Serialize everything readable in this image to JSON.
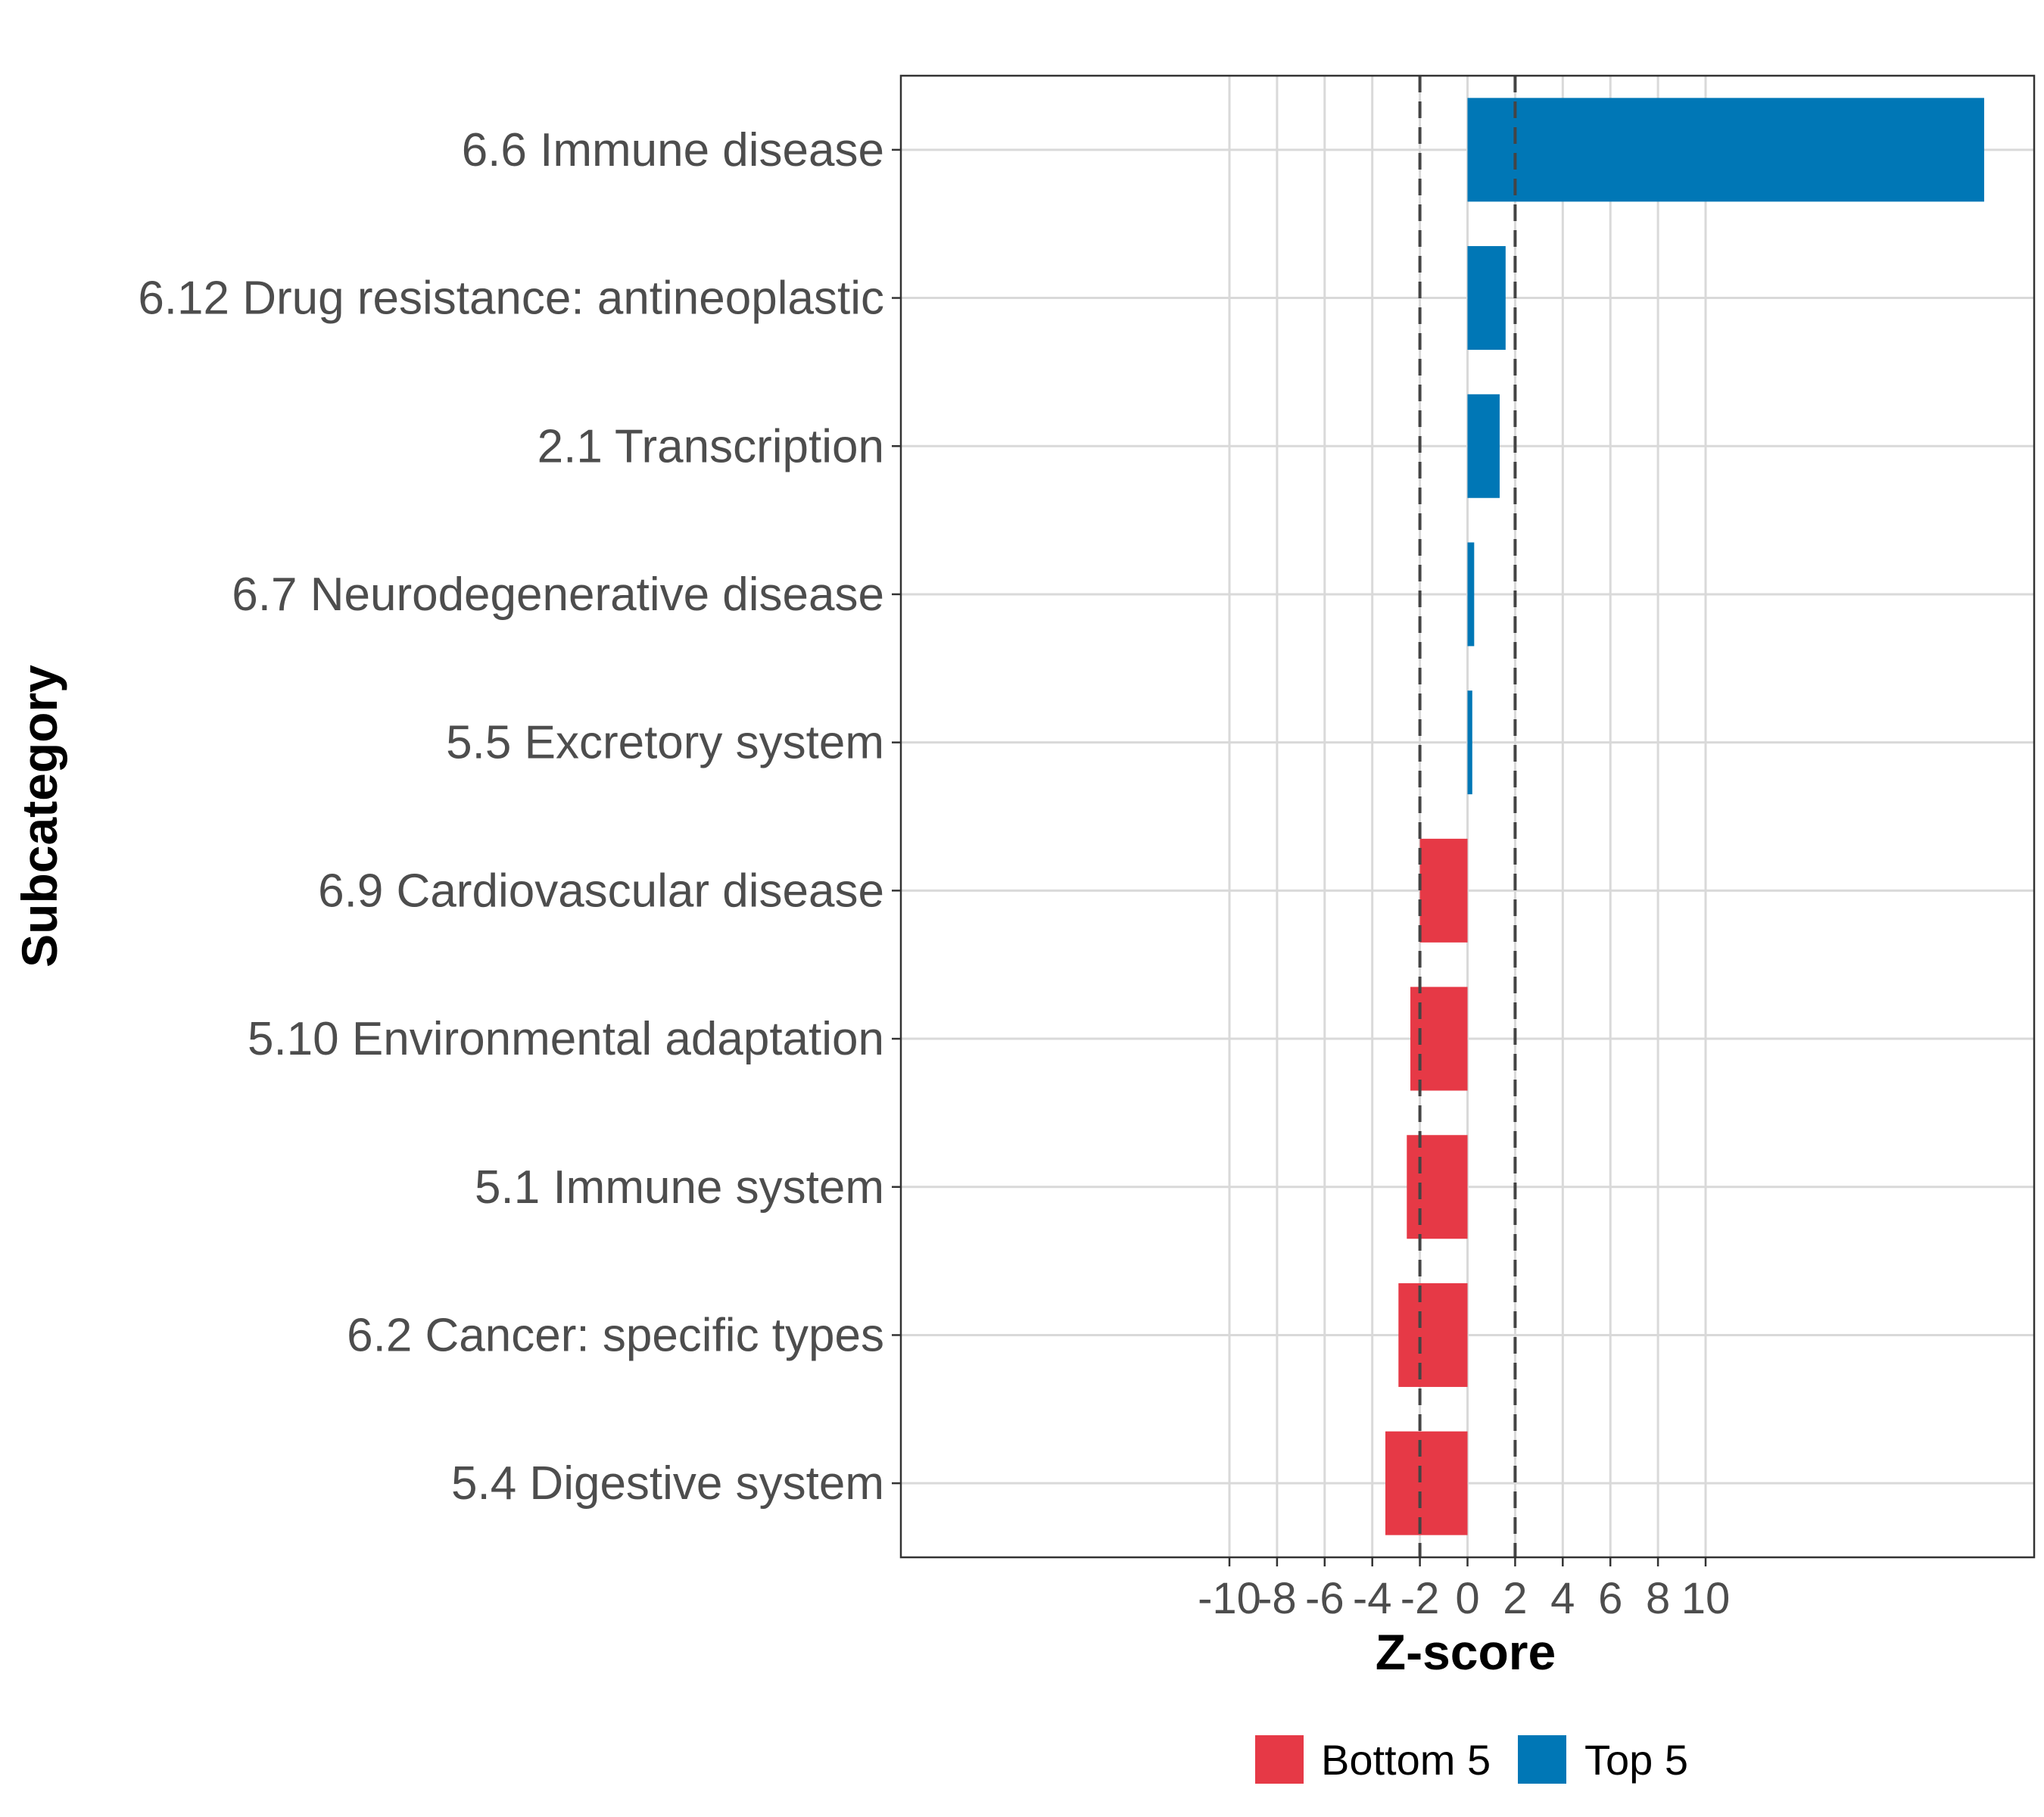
{
  "chart_data": {
    "type": "bar",
    "orientation": "horizontal",
    "xlabel": "Z-score",
    "ylabel": "Subcategory",
    "xlim": [
      -23.8,
      23.8
    ],
    "xticks": [
      -10,
      -8,
      -6,
      -4,
      -2,
      0,
      2,
      4,
      6,
      8,
      10
    ],
    "xtick_labels": [
      "-10",
      "-8",
      "-6",
      "-4",
      "-2",
      "0",
      "2",
      "4",
      "6",
      "8",
      "10"
    ],
    "reference_lines": [
      -2,
      2
    ],
    "grid": true,
    "legend_position": "bottom",
    "categories": [
      "6.6 Immune disease",
      "6.12 Drug resistance: antineoplastic",
      "2.1 Transcription",
      "6.7 Neurodegenerative disease",
      "5.5 Excretory system",
      "6.9 Cardiovascular disease",
      "5.10 Environmental adaptation",
      "5.1 Immune system",
      "6.2 Cancer: specific types",
      "5.4 Digestive system"
    ],
    "values": [
      21.7,
      1.6,
      1.35,
      0.28,
      0.2,
      -2.0,
      -2.4,
      -2.55,
      -2.9,
      -3.45
    ],
    "groups": [
      "Top 5",
      "Top 5",
      "Top 5",
      "Top 5",
      "Top 5",
      "Bottom 5",
      "Bottom 5",
      "Bottom 5",
      "Bottom 5",
      "Bottom 5"
    ],
    "series": [
      {
        "name": "Bottom 5",
        "color": "#e63946"
      },
      {
        "name": "Top 5",
        "color": "#0077b6"
      }
    ]
  }
}
